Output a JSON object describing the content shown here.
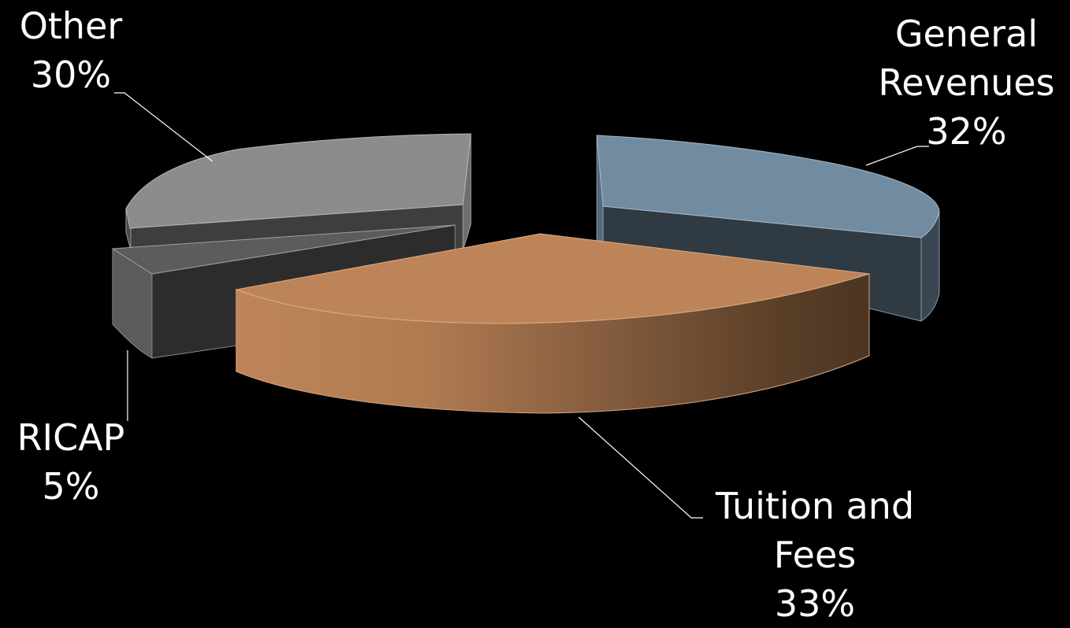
{
  "chart_data": {
    "type": "pie",
    "three_d": true,
    "exploded": true,
    "legend": "none",
    "slices": [
      {
        "label": "General Revenues",
        "label_lines": [
          "General",
          "Revenues"
        ],
        "value": 32,
        "value_label": "32%",
        "color": "#718ba1"
      },
      {
        "label": "Tuition and Fees",
        "label_lines": [
          "Tuition and",
          "Fees"
        ],
        "value": 33,
        "value_label": "33%",
        "color": "#bd845a"
      },
      {
        "label": "RICAP",
        "label_lines": [
          "RICAP"
        ],
        "value": 5,
        "value_label": "5%",
        "color": "#5c5c5c"
      },
      {
        "label": "Other",
        "label_lines": [
          "Other"
        ],
        "value": 30,
        "value_label": "30%",
        "color": "#8c8c8c"
      }
    ]
  }
}
